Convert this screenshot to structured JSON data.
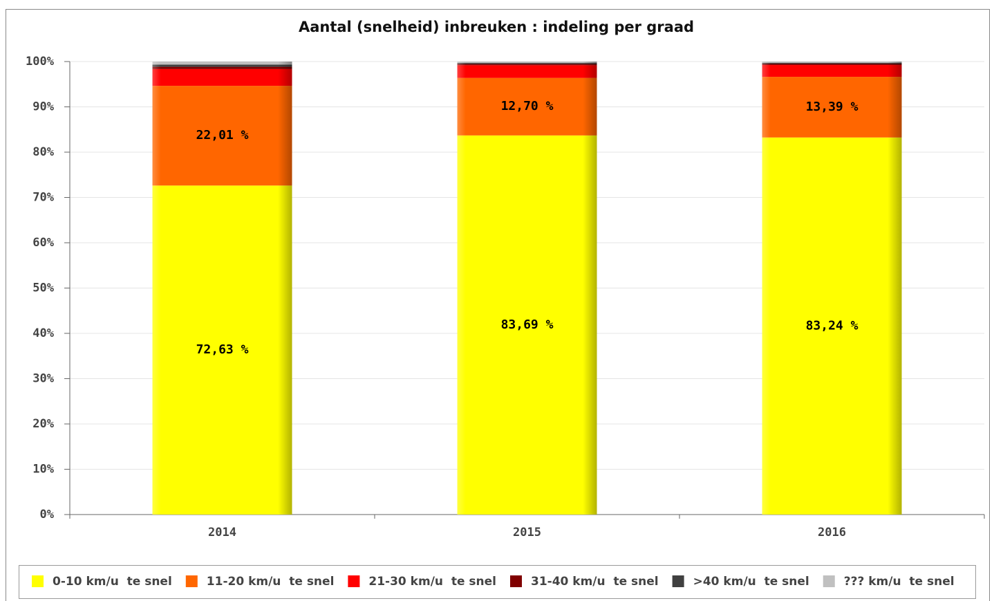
{
  "chart_data": {
    "type": "stacked_bar",
    "title": "Aantal (snelheid) inbreuken : indeling per graad",
    "categories": [
      "2014",
      "2015",
      "2016"
    ],
    "series": [
      {
        "name": "0-10 km/u  te snel",
        "color": "#ffff00",
        "values": [
          72.63,
          83.69,
          83.24
        ],
        "value_labels": [
          "72,63 %",
          "83,69 %",
          "83,24 %"
        ]
      },
      {
        "name": "11-20 km/u  te snel",
        "color": "#ff6600",
        "values": [
          22.01,
          12.7,
          13.39
        ],
        "value_labels": [
          "22,01 %",
          "12,70 %",
          "13,39 %"
        ]
      },
      {
        "name": "21-30 km/u  te snel",
        "color": "#ff0000",
        "values": [
          3.7,
          2.8,
          2.6
        ]
      },
      {
        "name": "31-40 km/u  te snel",
        "color": "#800000",
        "values": [
          0.5,
          0.3,
          0.3
        ]
      },
      {
        "name": ">40 km/u  te snel",
        "color": "#404040",
        "values": [
          0.5,
          0.2,
          0.2
        ]
      },
      {
        "name": "??? km/u  te snel",
        "color": "#c0c0c0",
        "values": [
          0.66,
          0.31,
          0.27
        ]
      }
    ],
    "ylim": [
      0,
      100
    ],
    "yticks": [
      {
        "value": 0,
        "label": "0%"
      },
      {
        "value": 10,
        "label": "10%"
      },
      {
        "value": 20,
        "label": "20%"
      },
      {
        "value": 30,
        "label": "30%"
      },
      {
        "value": 40,
        "label": "40%"
      },
      {
        "value": 50,
        "label": "50%"
      },
      {
        "value": 60,
        "label": "60%"
      },
      {
        "value": 70,
        "label": "70%"
      },
      {
        "value": 80,
        "label": "80%"
      },
      {
        "value": 90,
        "label": "90%"
      },
      {
        "value": 100,
        "label": "100%"
      }
    ],
    "grid": true,
    "legend": "bottom"
  }
}
